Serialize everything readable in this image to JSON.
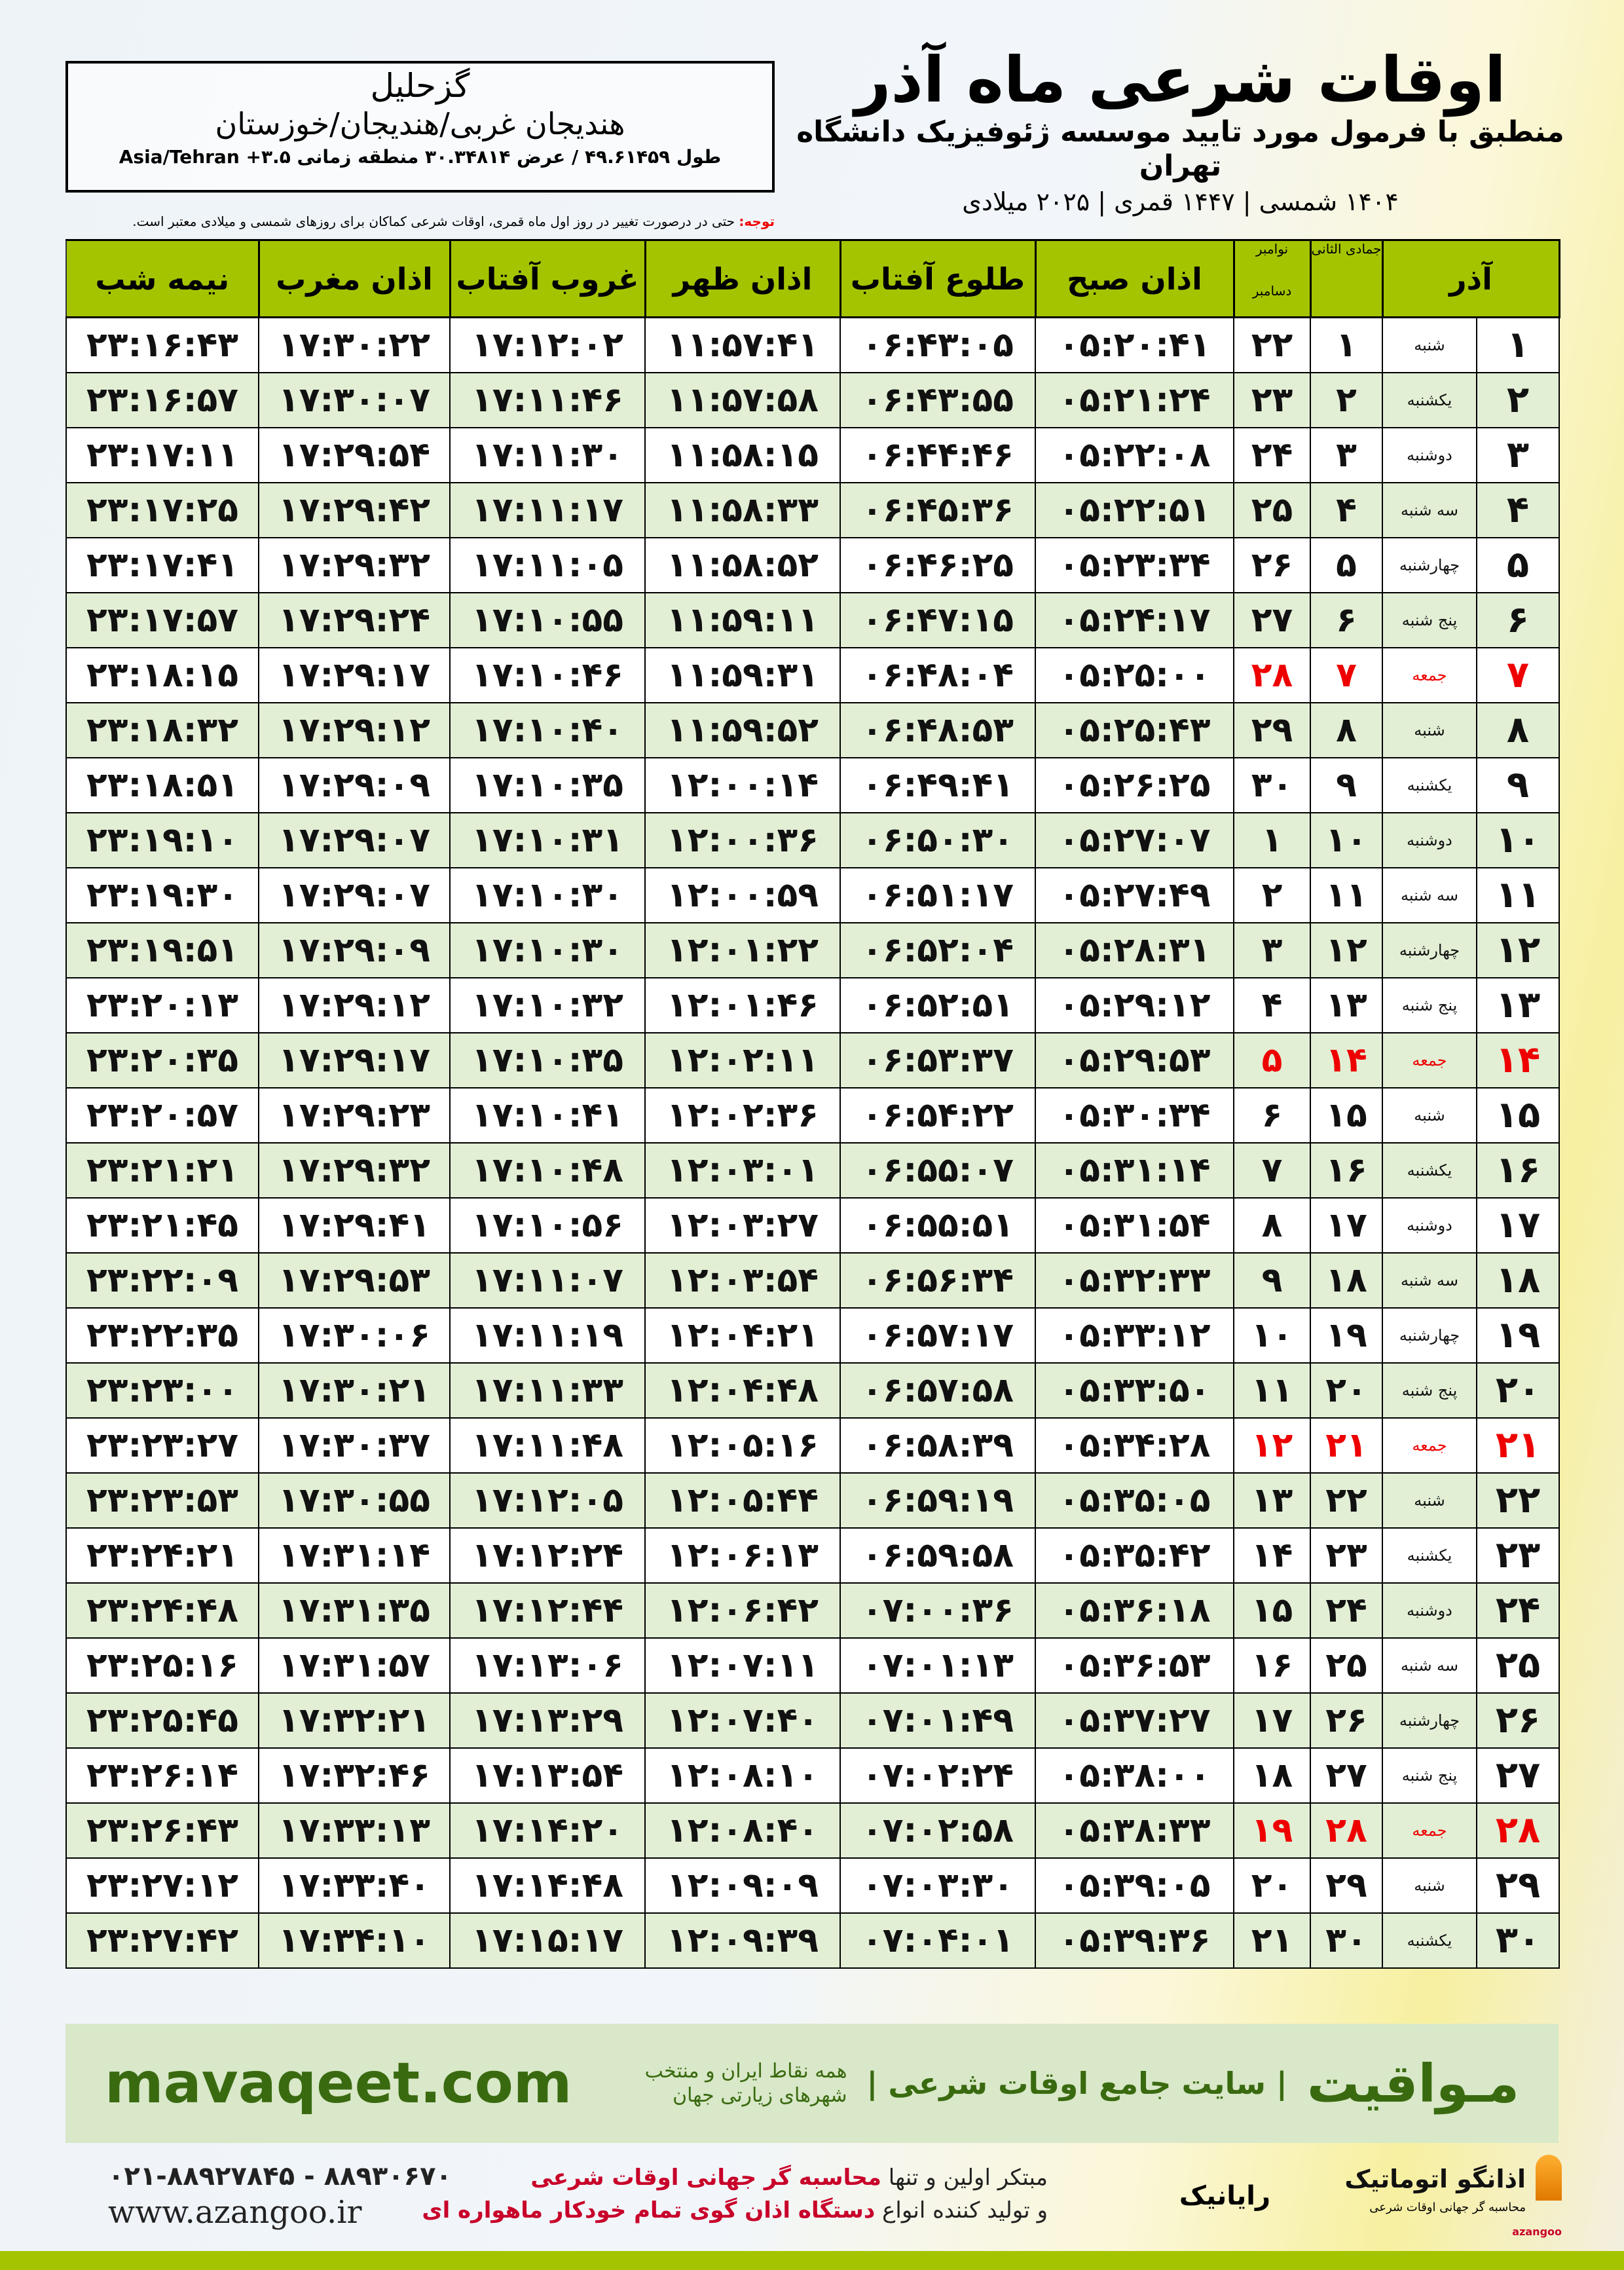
{
  "header": {
    "title": "اوقات شرعی ماه آذر",
    "subtitle": "منطبق با فرمول مورد تایید موسسه ژئوفیزیک دانشگاه تهران",
    "dates": "۱۴۰۴ شمسی | ۱۴۴۷ قمری | ۲۰۲۵ میلادی"
  },
  "location": {
    "name": "گزحلیل",
    "region": "هندیجان غربی/هندیجان/خوزستان",
    "coords": "طول ۴۹.۶۱۴۵۹ / عرض ۳۰.۳۴۸۱۴ منطقه زمانی Asia/Tehran +۳.۵"
  },
  "note": {
    "label": "توجه:",
    "text": " حتی در درصورت تغییر در روز اول ماه قمری، اوقات شرعی کماکان برای روزهای شمسی و میلادی معتبر است."
  },
  "columns": {
    "month": "آذر",
    "hijri": "جمادی الثانی",
    "greg_top": "نوامبر",
    "greg_bottom": "دسامبر",
    "fajr": "اذان صبح",
    "sunrise": "طلوع آفتاب",
    "dhuhr": "اذان ظهر",
    "sunset": "غروب آفتاب",
    "maghrib": "اذان مغرب",
    "midnight": "نیمه شب"
  },
  "friday_color": "#e00000",
  "header_color": "#a5c400",
  "alt_row_color": "#e2efd5",
  "rows": [
    [
      "۱",
      "شنبه",
      "۱",
      "۲۲",
      "۰۵:۲۰:۴۱",
      "۰۶:۴۳:۰۵",
      "۱۱:۵۷:۴۱",
      "۱۷:۱۲:۰۲",
      "۱۷:۳۰:۲۲",
      "۲۳:۱۶:۴۳"
    ],
    [
      "۲",
      "یکشنبه",
      "۲",
      "۲۳",
      "۰۵:۲۱:۲۴",
      "۰۶:۴۳:۵۵",
      "۱۱:۵۷:۵۸",
      "۱۷:۱۱:۴۶",
      "۱۷:۳۰:۰۷",
      "۲۳:۱۶:۵۷"
    ],
    [
      "۳",
      "دوشنبه",
      "۳",
      "۲۴",
      "۰۵:۲۲:۰۸",
      "۰۶:۴۴:۴۶",
      "۱۱:۵۸:۱۵",
      "۱۷:۱۱:۳۰",
      "۱۷:۲۹:۵۴",
      "۲۳:۱۷:۱۱"
    ],
    [
      "۴",
      "سه شنبه",
      "۴",
      "۲۵",
      "۰۵:۲۲:۵۱",
      "۰۶:۴۵:۳۶",
      "۱۱:۵۸:۳۳",
      "۱۷:۱۱:۱۷",
      "۱۷:۲۹:۴۲",
      "۲۳:۱۷:۲۵"
    ],
    [
      "۵",
      "چهارشنبه",
      "۵",
      "۲۶",
      "۰۵:۲۳:۳۴",
      "۰۶:۴۶:۲۵",
      "۱۱:۵۸:۵۲",
      "۱۷:۱۱:۰۵",
      "۱۷:۲۹:۳۲",
      "۲۳:۱۷:۴۱"
    ],
    [
      "۶",
      "پنج شنبه",
      "۶",
      "۲۷",
      "۰۵:۲۴:۱۷",
      "۰۶:۴۷:۱۵",
      "۱۱:۵۹:۱۱",
      "۱۷:۱۰:۵۵",
      "۱۷:۲۹:۲۴",
      "۲۳:۱۷:۵۷"
    ],
    [
      "۷",
      "جمعه",
      "۷",
      "۲۸",
      "۰۵:۲۵:۰۰",
      "۰۶:۴۸:۰۴",
      "۱۱:۵۹:۳۱",
      "۱۷:۱۰:۴۶",
      "۱۷:۲۹:۱۷",
      "۲۳:۱۸:۱۵"
    ],
    [
      "۸",
      "شنبه",
      "۸",
      "۲۹",
      "۰۵:۲۵:۴۳",
      "۰۶:۴۸:۵۳",
      "۱۱:۵۹:۵۲",
      "۱۷:۱۰:۴۰",
      "۱۷:۲۹:۱۲",
      "۲۳:۱۸:۳۲"
    ],
    [
      "۹",
      "یکشنبه",
      "۹",
      "۳۰",
      "۰۵:۲۶:۲۵",
      "۰۶:۴۹:۴۱",
      "۱۲:۰۰:۱۴",
      "۱۷:۱۰:۳۵",
      "۱۷:۲۹:۰۹",
      "۲۳:۱۸:۵۱"
    ],
    [
      "۱۰",
      "دوشنبه",
      "۱۰",
      "۱",
      "۰۵:۲۷:۰۷",
      "۰۶:۵۰:۳۰",
      "۱۲:۰۰:۳۶",
      "۱۷:۱۰:۳۱",
      "۱۷:۲۹:۰۷",
      "۲۳:۱۹:۱۰"
    ],
    [
      "۱۱",
      "سه شنبه",
      "۱۱",
      "۲",
      "۰۵:۲۷:۴۹",
      "۰۶:۵۱:۱۷",
      "۱۲:۰۰:۵۹",
      "۱۷:۱۰:۳۰",
      "۱۷:۲۹:۰۷",
      "۲۳:۱۹:۳۰"
    ],
    [
      "۱۲",
      "چهارشنبه",
      "۱۲",
      "۳",
      "۰۵:۲۸:۳۱",
      "۰۶:۵۲:۰۴",
      "۱۲:۰۱:۲۲",
      "۱۷:۱۰:۳۰",
      "۱۷:۲۹:۰۹",
      "۲۳:۱۹:۵۱"
    ],
    [
      "۱۳",
      "پنج شنبه",
      "۱۳",
      "۴",
      "۰۵:۲۹:۱۲",
      "۰۶:۵۲:۵۱",
      "۱۲:۰۱:۴۶",
      "۱۷:۱۰:۳۲",
      "۱۷:۲۹:۱۲",
      "۲۳:۲۰:۱۳"
    ],
    [
      "۱۴",
      "جمعه",
      "۱۴",
      "۵",
      "۰۵:۲۹:۵۳",
      "۰۶:۵۳:۳۷",
      "۱۲:۰۲:۱۱",
      "۱۷:۱۰:۳۵",
      "۱۷:۲۹:۱۷",
      "۲۳:۲۰:۳۵"
    ],
    [
      "۱۵",
      "شنبه",
      "۱۵",
      "۶",
      "۰۵:۳۰:۳۴",
      "۰۶:۵۴:۲۲",
      "۱۲:۰۲:۳۶",
      "۱۷:۱۰:۴۱",
      "۱۷:۲۹:۲۳",
      "۲۳:۲۰:۵۷"
    ],
    [
      "۱۶",
      "یکشنبه",
      "۱۶",
      "۷",
      "۰۵:۳۱:۱۴",
      "۰۶:۵۵:۰۷",
      "۱۲:۰۳:۰۱",
      "۱۷:۱۰:۴۸",
      "۱۷:۲۹:۳۲",
      "۲۳:۲۱:۲۱"
    ],
    [
      "۱۷",
      "دوشنبه",
      "۱۷",
      "۸",
      "۰۵:۳۱:۵۴",
      "۰۶:۵۵:۵۱",
      "۱۲:۰۳:۲۷",
      "۱۷:۱۰:۵۶",
      "۱۷:۲۹:۴۱",
      "۲۳:۲۱:۴۵"
    ],
    [
      "۱۸",
      "سه شنبه",
      "۱۸",
      "۹",
      "۰۵:۳۲:۳۳",
      "۰۶:۵۶:۳۴",
      "۱۲:۰۳:۵۴",
      "۱۷:۱۱:۰۷",
      "۱۷:۲۹:۵۳",
      "۲۳:۲۲:۰۹"
    ],
    [
      "۱۹",
      "چهارشنبه",
      "۱۹",
      "۱۰",
      "۰۵:۳۳:۱۲",
      "۰۶:۵۷:۱۷",
      "۱۲:۰۴:۲۱",
      "۱۷:۱۱:۱۹",
      "۱۷:۳۰:۰۶",
      "۲۳:۲۲:۳۵"
    ],
    [
      "۲۰",
      "پنج شنبه",
      "۲۰",
      "۱۱",
      "۰۵:۳۳:۵۰",
      "۰۶:۵۷:۵۸",
      "۱۲:۰۴:۴۸",
      "۱۷:۱۱:۳۳",
      "۱۷:۳۰:۲۱",
      "۲۳:۲۳:۰۰"
    ],
    [
      "۲۱",
      "جمعه",
      "۲۱",
      "۱۲",
      "۰۵:۳۴:۲۸",
      "۰۶:۵۸:۳۹",
      "۱۲:۰۵:۱۶",
      "۱۷:۱۱:۴۸",
      "۱۷:۳۰:۳۷",
      "۲۳:۲۳:۲۷"
    ],
    [
      "۲۲",
      "شنبه",
      "۲۲",
      "۱۳",
      "۰۵:۳۵:۰۵",
      "۰۶:۵۹:۱۹",
      "۱۲:۰۵:۴۴",
      "۱۷:۱۲:۰۵",
      "۱۷:۳۰:۵۵",
      "۲۳:۲۳:۵۳"
    ],
    [
      "۲۳",
      "یکشنبه",
      "۲۳",
      "۱۴",
      "۰۵:۳۵:۴۲",
      "۰۶:۵۹:۵۸",
      "۱۲:۰۶:۱۳",
      "۱۷:۱۲:۲۴",
      "۱۷:۳۱:۱۴",
      "۲۳:۲۴:۲۱"
    ],
    [
      "۲۴",
      "دوشنبه",
      "۲۴",
      "۱۵",
      "۰۵:۳۶:۱۸",
      "۰۷:۰۰:۳۶",
      "۱۲:۰۶:۴۲",
      "۱۷:۱۲:۴۴",
      "۱۷:۳۱:۳۵",
      "۲۳:۲۴:۴۸"
    ],
    [
      "۲۵",
      "سه شنبه",
      "۲۵",
      "۱۶",
      "۰۵:۳۶:۵۳",
      "۰۷:۰۱:۱۳",
      "۱۲:۰۷:۱۱",
      "۱۷:۱۳:۰۶",
      "۱۷:۳۱:۵۷",
      "۲۳:۲۵:۱۶"
    ],
    [
      "۲۶",
      "چهارشنبه",
      "۲۶",
      "۱۷",
      "۰۵:۳۷:۲۷",
      "۰۷:۰۱:۴۹",
      "۱۲:۰۷:۴۰",
      "۱۷:۱۳:۲۹",
      "۱۷:۳۲:۲۱",
      "۲۳:۲۵:۴۵"
    ],
    [
      "۲۷",
      "پنج شنبه",
      "۲۷",
      "۱۸",
      "۰۵:۳۸:۰۰",
      "۰۷:۰۲:۲۴",
      "۱۲:۰۸:۱۰",
      "۱۷:۱۳:۵۴",
      "۱۷:۳۲:۴۶",
      "۲۳:۲۶:۱۴"
    ],
    [
      "۲۸",
      "جمعه",
      "۲۸",
      "۱۹",
      "۰۵:۳۸:۳۳",
      "۰۷:۰۲:۵۸",
      "۱۲:۰۸:۴۰",
      "۱۷:۱۴:۲۰",
      "۱۷:۳۳:۱۳",
      "۲۳:۲۶:۴۳"
    ],
    [
      "۲۹",
      "شنبه",
      "۲۹",
      "۲۰",
      "۰۵:۳۹:۰۵",
      "۰۷:۰۳:۳۰",
      "۱۲:۰۹:۰۹",
      "۱۷:۱۴:۴۸",
      "۱۷:۳۳:۴۰",
      "۲۳:۲۷:۱۲"
    ],
    [
      "۳۰",
      "یکشنبه",
      "۳۰",
      "۲۱",
      "۰۵:۳۹:۳۶",
      "۰۷:۰۴:۰۱",
      "۱۲:۰۹:۳۹",
      "۱۷:۱۵:۱۷",
      "۱۷:۳۴:۱۰",
      "۲۳:۲۷:۴۲"
    ]
  ],
  "footer": {
    "site": "mavaqeet.com",
    "brand": "مـواقیت",
    "slogan": "| سایت جامع اوقات شرعی |",
    "tag": "همه نقاط ایران و منتخب شهرهای زیارتی جهان",
    "phone": "۰۲۱-۸۸۹۲۷۸۴۵ - ۸۸۹۳۰۶۷۰",
    "web": "www.azangoo.ir",
    "promo1a": "مبتکر اولین و تنها ",
    "promo1b": "محاسبه گر جهانی اوقات شرعی",
    "promo2a": "و تولید کننده انواع ",
    "promo2b": "دستگاه اذان گوی تمام خودکار ماهواره ای",
    "logo1": "اذانگو اتوماتیک",
    "logo1_sub": "محاسبه گر جهانی اوقات شرعی",
    "logo1_name": "azangoo",
    "logo2": "رایانیک"
  }
}
